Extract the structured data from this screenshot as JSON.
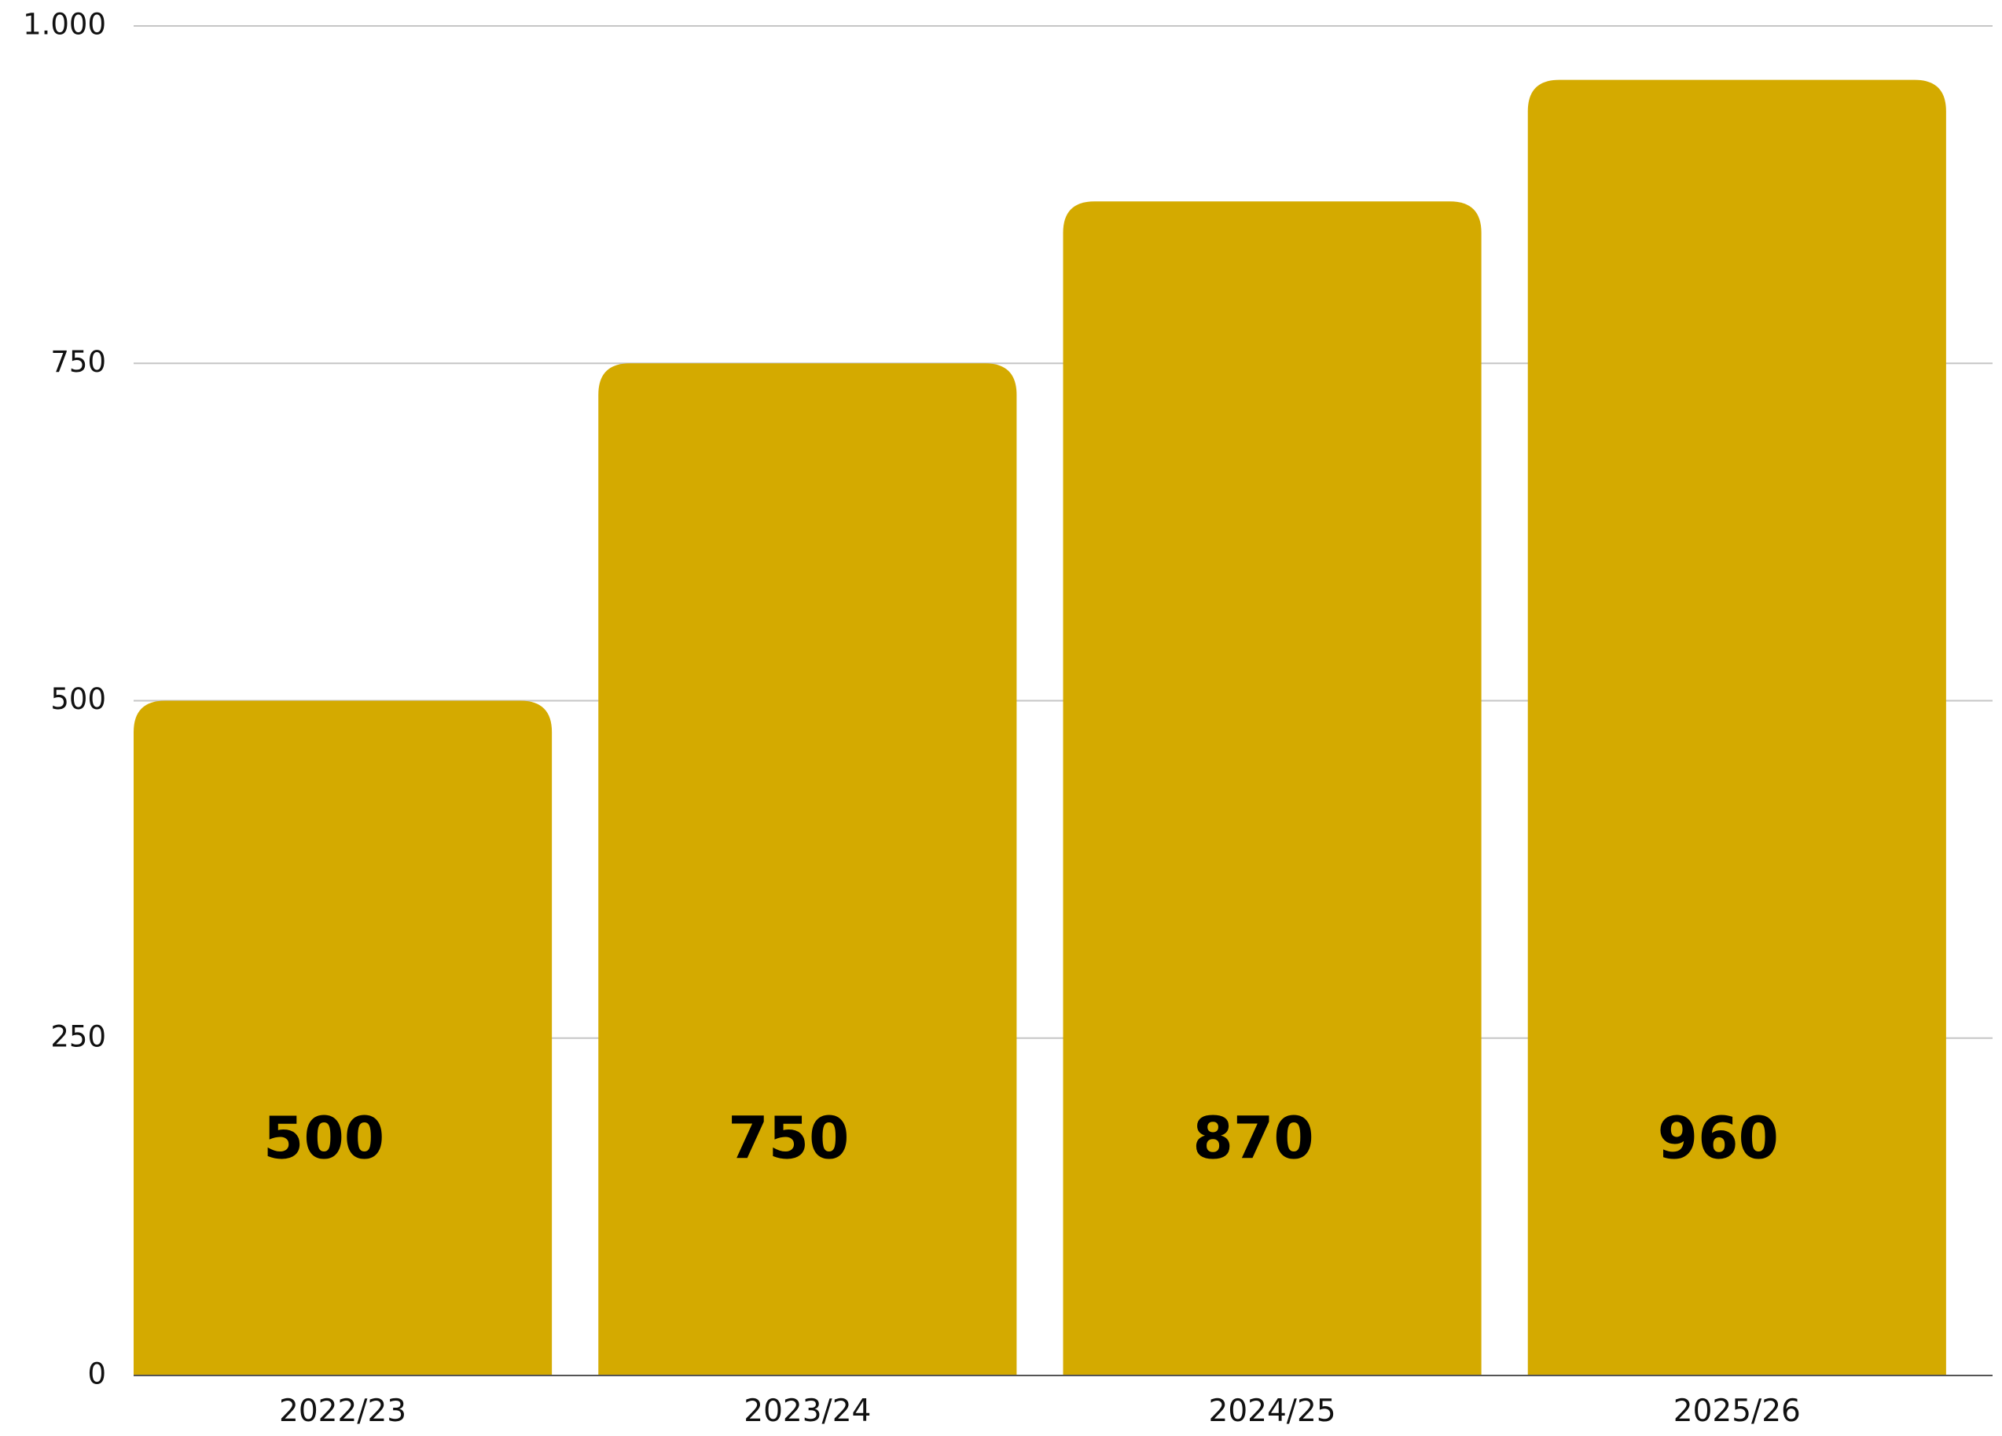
{
  "chart_data": {
    "type": "bar",
    "categories": [
      "2022/23",
      "2023/24",
      "2024/25",
      "2025/26"
    ],
    "values": [
      500,
      750,
      870,
      960
    ],
    "data_labels": [
      "500",
      "750",
      "870",
      "960"
    ],
    "title": "",
    "xlabel": "",
    "ylabel": "",
    "ylim": [
      0,
      1000
    ],
    "yticks": [
      0,
      250,
      500,
      750,
      1000
    ],
    "ytick_labels": [
      "0",
      "250",
      "500",
      "750",
      "1.000"
    ],
    "grid": true,
    "legend": "none",
    "bar_color": "#D4AA00"
  }
}
